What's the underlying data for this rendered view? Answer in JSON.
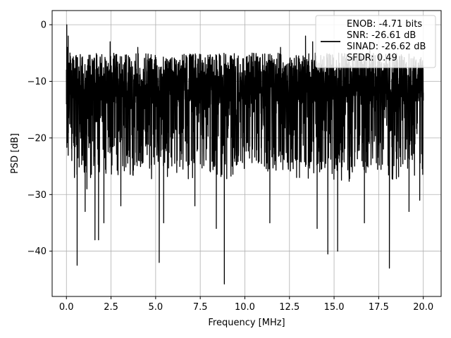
{
  "chart_data": {
    "type": "line",
    "title": "",
    "xlabel": "Frequency [MHz]",
    "ylabel": "PSD [dB]",
    "xlim": [
      -0.8,
      21.0
    ],
    "ylim": [
      -48.0,
      2.5
    ],
    "xticks": [
      0.0,
      2.5,
      5.0,
      7.5,
      10.0,
      12.5,
      15.0,
      17.5,
      20.0
    ],
    "xtick_labels": [
      "0.0",
      "2.5",
      "5.0",
      "7.5",
      "10.0",
      "12.5",
      "15.0",
      "17.5",
      "20.0"
    ],
    "yticks": [
      0,
      -10,
      -20,
      -30,
      -40
    ],
    "ytick_labels": [
      "0",
      "−10",
      "−20",
      "−30",
      "−40"
    ],
    "grid": true,
    "legend_position": "top-right",
    "series": [
      {
        "color": "#000000",
        "description": "dense noisy PSD trace, 0 to 20 MHz; upper envelope near -5 dB, lower envelope near -25 dB",
        "envelope_high": -5,
        "envelope_low": -25,
        "x_range": [
          0.0,
          20.0
        ],
        "points": [
          [
            0.0,
            -8
          ],
          [
            0.02,
            0
          ],
          [
            0.05,
            -4
          ],
          [
            0.1,
            -2
          ],
          [
            0.15,
            -10
          ],
          [
            0.2,
            -5
          ],
          [
            0.3,
            -24
          ],
          [
            0.45,
            -27
          ],
          [
            0.6,
            -42.5
          ],
          [
            1.05,
            -33
          ],
          [
            1.15,
            -29
          ],
          [
            1.6,
            -38
          ],
          [
            1.8,
            -38
          ],
          [
            2.1,
            -35
          ],
          [
            2.45,
            -3
          ],
          [
            3.05,
            -32
          ],
          [
            4.0,
            -4
          ],
          [
            5.2,
            -42
          ],
          [
            5.45,
            -35
          ],
          [
            7.0,
            -24
          ],
          [
            7.2,
            -32
          ],
          [
            8.4,
            -36
          ],
          [
            8.85,
            -45.8
          ],
          [
            11.4,
            -35
          ],
          [
            12.0,
            -4
          ],
          [
            13.4,
            -2
          ],
          [
            13.8,
            -3
          ],
          [
            14.05,
            -36
          ],
          [
            14.65,
            -40.5
          ],
          [
            15.2,
            -40
          ],
          [
            16.7,
            -35
          ],
          [
            17.0,
            -3
          ],
          [
            18.1,
            -43
          ],
          [
            19.2,
            -33
          ],
          [
            19.8,
            -31
          ],
          [
            20.0,
            -12
          ]
        ]
      }
    ],
    "legend_lines": [
      "ENOB: -4.71 bits",
      "SNR: -26.61 dB",
      "SINAD: -26.62 dB",
      "SFDR: 0.49"
    ]
  }
}
